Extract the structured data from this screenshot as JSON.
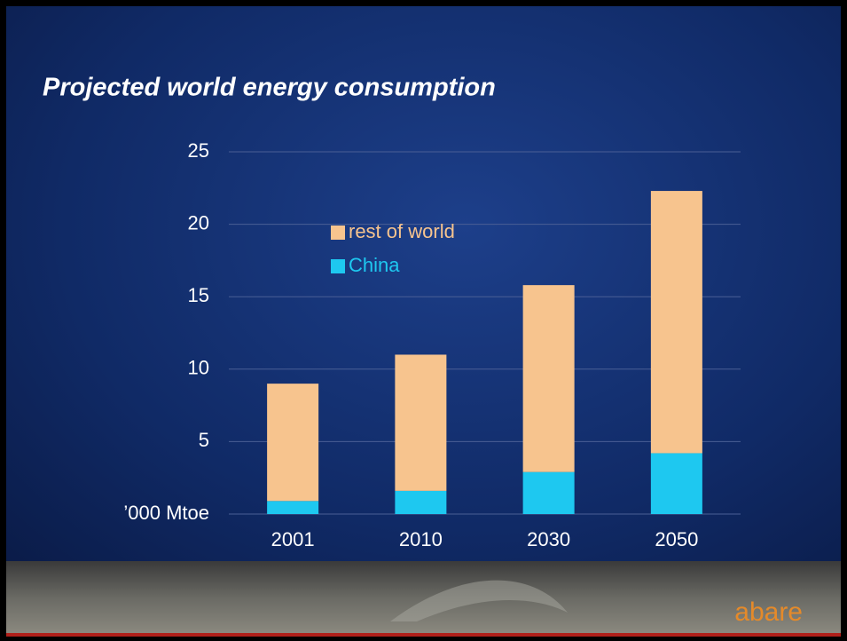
{
  "chart_data": {
    "type": "stacked-bar",
    "title": "Projected world energy consumption",
    "categories": [
      "2001",
      "2010",
      "2030",
      "2050"
    ],
    "series": [
      {
        "name": "China",
        "color": "#1ec8f0",
        "values": [
          0.9,
          1.6,
          2.9,
          4.2
        ]
      },
      {
        "name": "rest of world",
        "color": "#f7c48e",
        "values": [
          8.1,
          9.4,
          12.9,
          18.1
        ]
      }
    ],
    "ylim": [
      0,
      25
    ],
    "yticks": [
      {
        "value": 0,
        "label": "’000 Mtoe"
      },
      5,
      10,
      15,
      20,
      25
    ],
    "grid": true
  },
  "footer": {
    "logo": "abare"
  }
}
